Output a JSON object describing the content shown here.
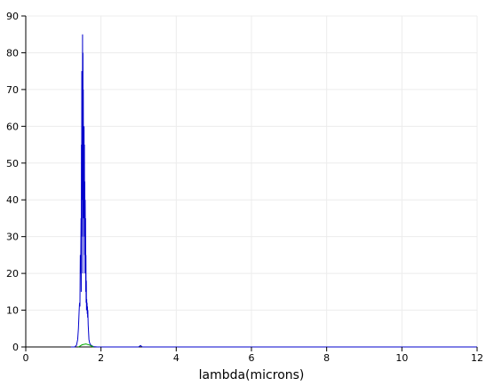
{
  "chart_data": {
    "type": "line",
    "title": "",
    "xlabel": "lambda(microns)",
    "ylabel": "",
    "xlim": [
      0,
      12
    ],
    "ylim": [
      0,
      90
    ],
    "xticks": [
      "0",
      "2",
      "4",
      "6",
      "8",
      "10",
      "12"
    ],
    "yticks": [
      "0",
      "10",
      "20",
      "30",
      "40",
      "50",
      "60",
      "70",
      "80",
      "90"
    ],
    "grid": true,
    "series": [
      {
        "color": "#0000cc",
        "x": [
          1.2,
          1.3,
          1.35,
          1.38,
          1.4,
          1.42,
          1.43,
          1.44,
          1.45,
          1.46,
          1.47,
          1.475,
          1.48,
          1.485,
          1.49,
          1.495,
          1.5,
          1.505,
          1.51,
          1.515,
          1.52,
          1.525,
          1.53,
          1.535,
          1.54,
          1.545,
          1.55,
          1.555,
          1.56,
          1.565,
          1.57,
          1.575,
          1.58,
          1.585,
          1.59,
          1.595,
          1.6,
          1.605,
          1.61,
          1.615,
          1.62,
          1.625,
          1.63,
          1.635,
          1.64,
          1.645,
          1.65,
          1.66,
          1.67,
          1.68,
          1.7,
          1.73,
          1.76,
          1.8,
          1.9,
          3.0,
          3.05,
          3.1,
          4.0,
          12.0
        ],
        "y": [
          0,
          0,
          0.5,
          2,
          5,
          10,
          12,
          11,
          25,
          20,
          35,
          15,
          55,
          30,
          75,
          40,
          60,
          45,
          85,
          20,
          80,
          50,
          70,
          35,
          55,
          40,
          60,
          30,
          55,
          25,
          45,
          20,
          40,
          28,
          35,
          15,
          25,
          12,
          18,
          10,
          13,
          10,
          12,
          9,
          11,
          8,
          10,
          6,
          4,
          2,
          1,
          0.5,
          0.3,
          0.1,
          0,
          0,
          0.4,
          0,
          0,
          0
        ]
      },
      {
        "color": "#00aa00",
        "x": [
          1.4,
          1.5,
          1.6,
          1.7,
          1.8
        ],
        "y": [
          0,
          0.6,
          0.8,
          0.5,
          0
        ]
      }
    ]
  }
}
